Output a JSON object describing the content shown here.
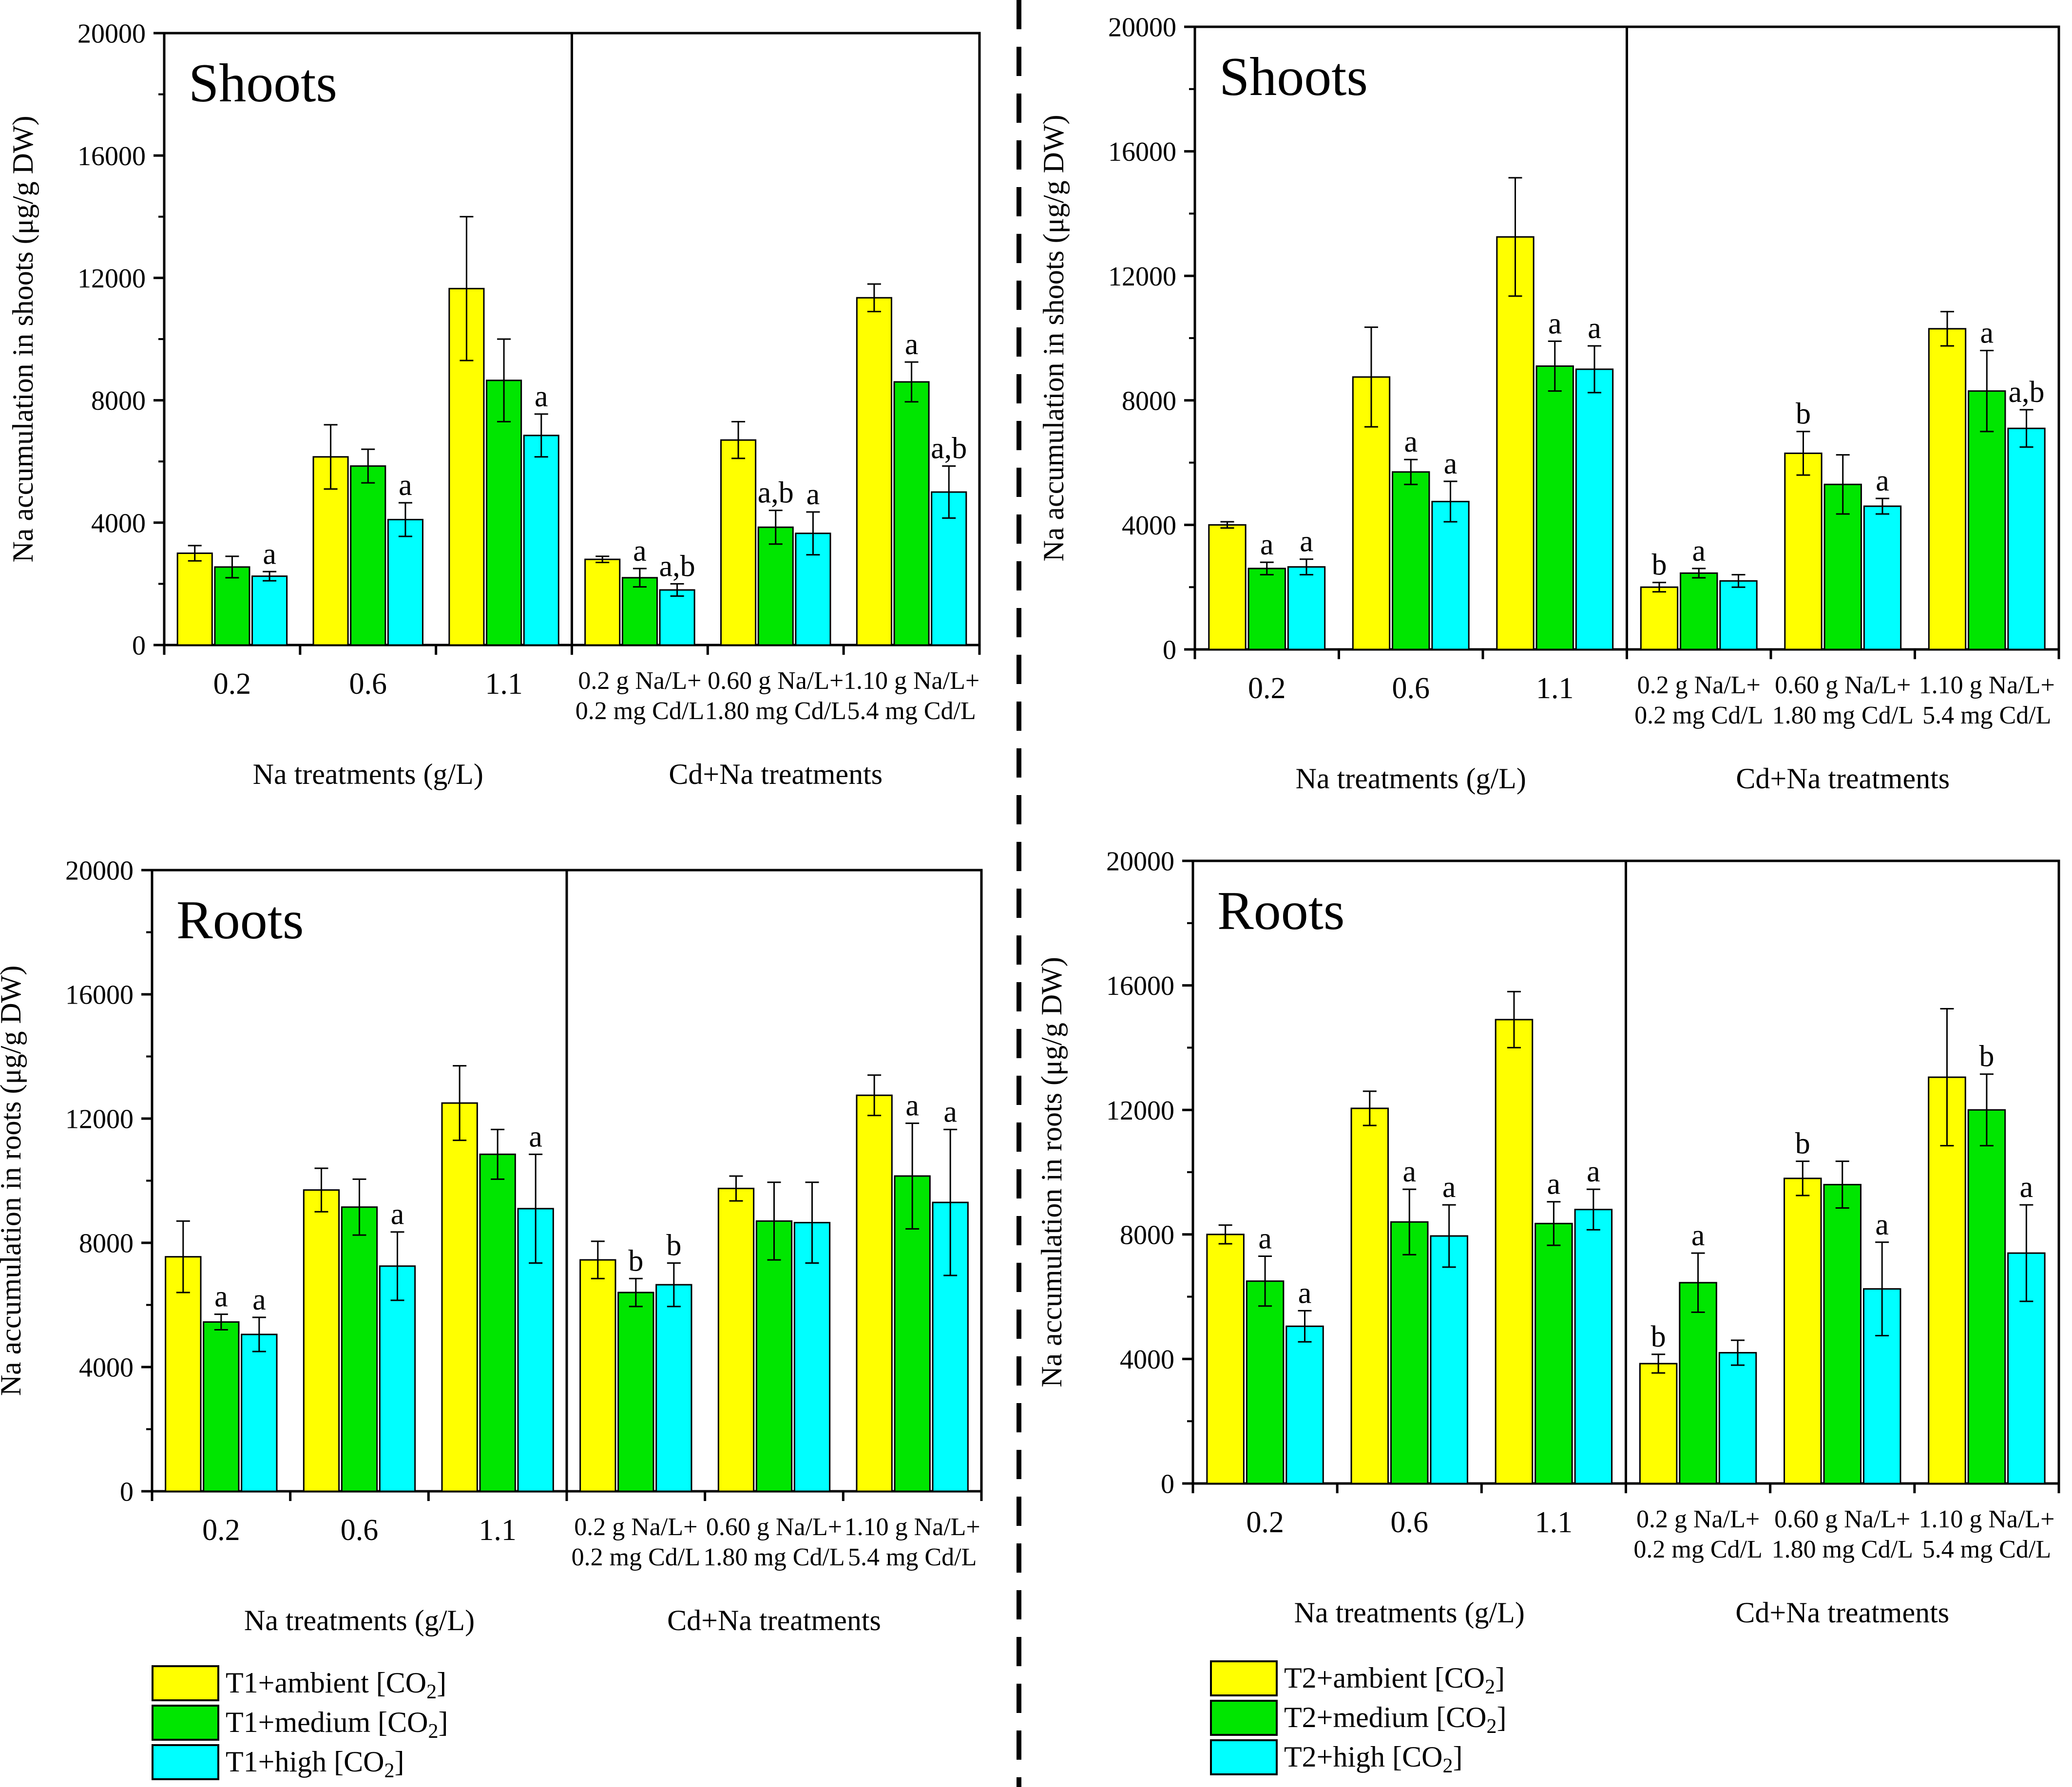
{
  "figure": {
    "colors": {
      "ambient": "#ffff00",
      "medium": "#00e600",
      "high": "#00ffff"
    }
  },
  "chart_data": [
    {
      "type": "bar",
      "title": "Shoots",
      "ylabel": "Na accumulation in shoots (μg/g DW)",
      "ylim": [
        0,
        20000
      ],
      "yticks": [
        0,
        4000,
        8000,
        12000,
        16000,
        20000
      ],
      "sections": [
        "Na treatments (g/L)",
        "Cd+Na treatments"
      ],
      "categories": [
        [
          "0.2"
        ],
        [
          "0.6"
        ],
        [
          "1.1"
        ],
        [
          "0.2 g Na/L+",
          "0.2 mg Cd/L"
        ],
        [
          "0.60 g Na/L+",
          "1.80 mg Cd/L"
        ],
        [
          "1.10 g Na/L+",
          "5.4 mg Cd/L"
        ]
      ],
      "series": [
        {
          "name": "T1+ambient [CO2]",
          "values": [
            3000,
            6150,
            11650,
            2800,
            6700,
            11350
          ],
          "errors": [
            250,
            1050,
            2350,
            100,
            600,
            450
          ],
          "letters": [
            "",
            "",
            "",
            "",
            "",
            ""
          ]
        },
        {
          "name": "T1+medium [CO2]",
          "values": [
            2550,
            5850,
            8650,
            2200,
            3850,
            8600
          ],
          "errors": [
            350,
            550,
            1350,
            300,
            550,
            650
          ],
          "letters": [
            "",
            "",
            "",
            "a",
            "a,b",
            "a"
          ]
        },
        {
          "name": "T1+high [CO2]",
          "values": [
            2250,
            4100,
            6850,
            1800,
            3650,
            5000
          ],
          "errors": [
            150,
            550,
            700,
            200,
            700,
            850
          ],
          "letters": [
            "a",
            "a",
            "a",
            "a,b",
            "a",
            "a,b"
          ]
        }
      ],
      "legend": [
        "T1+ambient [CO",
        "T1+medium [CO",
        "T1+high [CO"
      ]
    },
    {
      "type": "bar",
      "title": "Shoots",
      "ylabel": "Na accumulation in shoots (μg/g DW)",
      "ylim": [
        0,
        20000
      ],
      "yticks": [
        0,
        4000,
        8000,
        12000,
        16000,
        20000
      ],
      "sections": [
        "Na treatments (g/L)",
        "Cd+Na treatments"
      ],
      "categories": [
        [
          "0.2"
        ],
        [
          "0.6"
        ],
        [
          "1.1"
        ],
        [
          "0.2 g Na/L+",
          "0.2 mg Cd/L"
        ],
        [
          "0.60 g Na/L+",
          "1.80 mg Cd/L"
        ],
        [
          "1.10 g Na/L+",
          "5.4 mg Cd/L"
        ]
      ],
      "series": [
        {
          "name": "T2+ambient [CO2]",
          "values": [
            4000,
            8750,
            13250,
            2000,
            6300,
            10300
          ],
          "errors": [
            100,
            1600,
            1900,
            150,
            700,
            550
          ],
          "letters": [
            "",
            "",
            "",
            "b",
            "b",
            ""
          ]
        },
        {
          "name": "T2+medium [CO2]",
          "values": [
            2600,
            5700,
            9100,
            2450,
            5300,
            8300
          ],
          "errors": [
            200,
            400,
            800,
            150,
            950,
            1300
          ],
          "letters": [
            "a",
            "a",
            "a",
            "a",
            "",
            "a"
          ]
        },
        {
          "name": "T2+high [CO2]",
          "values": [
            2650,
            4750,
            9000,
            2200,
            4600,
            7100
          ],
          "errors": [
            250,
            650,
            750,
            200,
            250,
            600
          ],
          "letters": [
            "a",
            "a",
            "a",
            "",
            "a",
            "a,b"
          ]
        }
      ],
      "legend": [
        "T2+ambient [CO",
        "T2+medium [CO",
        "T2+high [CO"
      ]
    },
    {
      "type": "bar",
      "title": "Roots",
      "ylabel": "Na accumulation in roots (μg/g DW)",
      "ylim": [
        0,
        20000
      ],
      "yticks": [
        0,
        4000,
        8000,
        12000,
        16000,
        20000
      ],
      "sections": [
        "Na treatments (g/L)",
        "Cd+Na treatments"
      ],
      "categories": [
        [
          "0.2"
        ],
        [
          "0.6"
        ],
        [
          "1.1"
        ],
        [
          "0.2 g Na/L+",
          "0.2 mg Cd/L"
        ],
        [
          "0.60 g Na/L+",
          "1.80 mg Cd/L"
        ],
        [
          "1.10 g Na/L+",
          "5.4 mg Cd/L"
        ]
      ],
      "series": [
        {
          "name": "T1+ambient [CO2]",
          "values": [
            7550,
            9700,
            12500,
            7450,
            9750,
            12750
          ],
          "errors": [
            1150,
            700,
            1200,
            600,
            400,
            650
          ],
          "letters": [
            "",
            "",
            "",
            "",
            "",
            ""
          ]
        },
        {
          "name": "T1+medium [CO2]",
          "values": [
            5450,
            9150,
            10850,
            6400,
            8700,
            10150
          ],
          "errors": [
            250,
            900,
            800,
            450,
            1250,
            1700
          ],
          "letters": [
            "a",
            "",
            "",
            "b",
            "",
            "a"
          ]
        },
        {
          "name": "T1+high [CO2]",
          "values": [
            5050,
            7250,
            9100,
            6650,
            8650,
            9300
          ],
          "errors": [
            550,
            1100,
            1750,
            700,
            1300,
            2350
          ],
          "letters": [
            "a",
            "a",
            "a",
            "b",
            "",
            "a"
          ]
        }
      ]
    },
    {
      "type": "bar",
      "title": "Roots",
      "ylabel": "Na accumulation in roots (μg/g DW)",
      "ylim": [
        0,
        20000
      ],
      "yticks": [
        0,
        4000,
        8000,
        12000,
        16000,
        20000
      ],
      "sections": [
        "Na treatments (g/L)",
        "Cd+Na treatments"
      ],
      "categories": [
        [
          "0.2"
        ],
        [
          "0.6"
        ],
        [
          "1.1"
        ],
        [
          "0.2 g Na/L+",
          "0.2 mg Cd/L"
        ],
        [
          "0.60 g Na/L+",
          "1.80 mg Cd/L"
        ],
        [
          "1.10 g Na/L+",
          "5.4 mg Cd/L"
        ]
      ],
      "series": [
        {
          "name": "T2+ambient [CO2]",
          "values": [
            8000,
            12050,
            14900,
            3850,
            9800,
            13050
          ],
          "errors": [
            300,
            550,
            900,
            300,
            550,
            2200
          ],
          "letters": [
            "",
            "",
            "",
            "b",
            "b",
            ""
          ]
        },
        {
          "name": "T2+medium [CO2]",
          "values": [
            6500,
            8400,
            8350,
            6450,
            9600,
            12000
          ],
          "errors": [
            800,
            1050,
            700,
            950,
            750,
            1150
          ],
          "letters": [
            "a",
            "a",
            "a",
            "a",
            "",
            "b"
          ]
        },
        {
          "name": "T2+high [CO2]",
          "values": [
            5050,
            7950,
            8800,
            4200,
            6250,
            7400
          ],
          "errors": [
            500,
            1000,
            650,
            400,
            1500,
            1550
          ],
          "letters": [
            "a",
            "a",
            "a",
            "",
            "a",
            "a"
          ]
        }
      ]
    }
  ]
}
